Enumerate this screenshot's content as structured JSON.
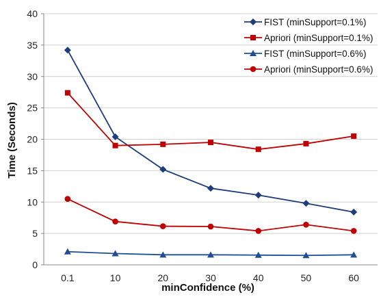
{
  "chart_data": {
    "type": "line",
    "title": "",
    "xlabel": "minConfidence (%)",
    "ylabel": "Time (Seconds)",
    "categories": [
      "0.1",
      "10",
      "20",
      "30",
      "40",
      "50",
      "60"
    ],
    "ylim": [
      0,
      40
    ],
    "yticks": [
      0,
      5,
      10,
      15,
      20,
      25,
      30,
      35,
      40
    ],
    "grid": "horizontal",
    "legend_position": "top-right",
    "series": [
      {
        "name": "FIST (minSupport=0.1%)",
        "color": "#1f3d7a",
        "marker": "diamond",
        "values": [
          34.2,
          20.4,
          15.2,
          12.2,
          11.1,
          9.8,
          8.4
        ]
      },
      {
        "name": "Apriori (minSupport=0.1%)",
        "color": "#c00000",
        "marker": "square",
        "values": [
          27.4,
          19.0,
          19.2,
          19.5,
          18.4,
          19.3,
          20.5
        ]
      },
      {
        "name": "FIST (minSupport=0.6%)",
        "color": "#1f4e96",
        "marker": "triangle",
        "values": [
          2.1,
          1.8,
          1.6,
          1.6,
          1.55,
          1.5,
          1.6
        ]
      },
      {
        "name": "Apriori (minSupport=0.6%)",
        "color": "#c00000",
        "marker": "circle",
        "values": [
          10.5,
          6.9,
          6.15,
          6.1,
          5.4,
          6.4,
          5.4
        ]
      }
    ]
  }
}
